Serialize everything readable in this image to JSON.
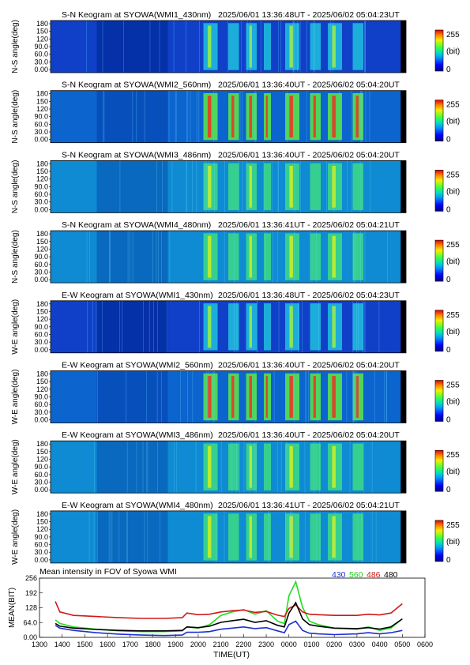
{
  "keogram_panels": [
    {
      "name": "S-N Keogram at SYOWA(WMI1_430nm)",
      "range": "2025/06/01 13:36:48UT - 2025/06/02 05:04:23UT",
      "ylabel": "N-S angle(deg)",
      "intensity": "low"
    },
    {
      "name": "S-N Keogram at SYOWA(WMI2_560nm)",
      "range": "2025/06/01 13:36:40UT - 2025/06/02 05:04:20UT",
      "ylabel": "N-S angle(deg)",
      "intensity": "high"
    },
    {
      "name": "S-N Keogram at SYOWA(WMI3_486nm)",
      "range": "2025/06/01 13:36:40UT - 2025/06/02 05:04:20UT",
      "ylabel": "N-S angle(deg)",
      "intensity": "mid"
    },
    {
      "name": "S-N Keogram at SYOWA(WMI4_480nm)",
      "range": "2025/06/01 13:36:41UT - 2025/06/02 05:04:21UT",
      "ylabel": "N-S angle(deg)",
      "intensity": "mid"
    },
    {
      "name": "E-W Keogram at SYOWA(WMI1_430nm)",
      "range": "2025/06/01 13:36:48UT - 2025/06/02 05:04:23UT",
      "ylabel": "W-E angle(deg)",
      "intensity": "low"
    },
    {
      "name": "E-W Keogram at SYOWA(WMI2_560nm)",
      "range": "2025/06/01 13:36:40UT - 2025/06/02 05:04:20UT",
      "ylabel": "W-E angle(deg)",
      "intensity": "high"
    },
    {
      "name": "E-W Keogram at SYOWA(WMI3_486nm)",
      "range": "2025/06/01 13:36:40UT - 2025/06/02 05:04:20UT",
      "ylabel": "W-E angle(deg)",
      "intensity": "mid"
    },
    {
      "name": "E-W Keogram at SYOWA(WMI4_480nm)",
      "range": "2025/06/01 13:36:41UT - 2025/06/02 05:04:21UT",
      "ylabel": "W-E angle(deg)",
      "intensity": "mid"
    }
  ],
  "keogram_yticks": [
    "180",
    "150",
    "120",
    "90.0",
    "60.0",
    "30.0",
    "0.00"
  ],
  "colorbar": {
    "max": "255",
    "unit": "(bit)",
    "min": "0"
  },
  "chart_data": {
    "type": "line",
    "title": "Mean intensity in FOV of Syowa WMI",
    "xlabel": "TIME(UT)",
    "ylabel": "MEAN(BIT)",
    "xlim": [
      13,
      30
    ],
    "ylim": [
      0,
      256
    ],
    "x_tick_labels": [
      "1300",
      "1400",
      "1500",
      "1600",
      "1700",
      "1800",
      "1900",
      "2000",
      "2100",
      "2200",
      "2300",
      "0000",
      "0100",
      "0200",
      "0300",
      "0400",
      "0500",
      "0600"
    ],
    "y_tick_labels": [
      "256",
      "192",
      "128",
      "64.0",
      "0.00"
    ],
    "y_tick_values": [
      256,
      192,
      128,
      64,
      0
    ],
    "series": [
      {
        "name": "430",
        "color": "#1f2fcf",
        "x": [
          13.7,
          13.9,
          14.5,
          15.5,
          16.5,
          17.5,
          18.5,
          19.3,
          19.5,
          20.0,
          20.5,
          21.0,
          21.5,
          22.0,
          22.5,
          23.0,
          23.5,
          23.8,
          24.0,
          24.3,
          24.6,
          24.9,
          25.3,
          26.0,
          27.0,
          27.5,
          28.0,
          28.5,
          29.0
        ],
        "y": [
          52,
          40,
          30,
          20,
          14,
          10,
          8,
          10,
          22,
          22,
          25,
          35,
          40,
          45,
          38,
          42,
          28,
          20,
          55,
          70,
          30,
          18,
          15,
          12,
          15,
          20,
          15,
          20,
          30
        ]
      },
      {
        "name": "560",
        "color": "#22dd22",
        "x": [
          13.7,
          13.9,
          14.5,
          15.5,
          16.5,
          17.5,
          18.5,
          19.3,
          19.5,
          20.0,
          20.5,
          21.0,
          21.5,
          22.0,
          22.5,
          23.0,
          23.5,
          23.8,
          24.0,
          24.3,
          24.6,
          24.9,
          25.3,
          26.0,
          27.0,
          27.5,
          28.0,
          28.5,
          29.0
        ],
        "y": [
          75,
          60,
          45,
          35,
          28,
          25,
          25,
          28,
          45,
          40,
          55,
          95,
          110,
          120,
          100,
          115,
          70,
          60,
          180,
          240,
          130,
          70,
          55,
          40,
          35,
          45,
          30,
          40,
          80
        ]
      },
      {
        "name": "486",
        "color": "#d01818",
        "x": [
          13.7,
          13.9,
          14.5,
          15.5,
          16.5,
          17.5,
          18.5,
          19.3,
          19.5,
          20.0,
          20.5,
          21.0,
          21.5,
          22.0,
          22.5,
          23.0,
          23.5,
          23.8,
          24.0,
          24.3,
          24.6,
          24.9,
          25.3,
          26.0,
          27.0,
          27.5,
          28.0,
          28.5,
          29.0
        ],
        "y": [
          155,
          110,
          95,
          90,
          85,
          82,
          82,
          85,
          105,
          98,
          100,
          110,
          115,
          118,
          108,
          112,
          96,
          90,
          125,
          140,
          110,
          100,
          98,
          95,
          95,
          100,
          97,
          105,
          145
        ]
      },
      {
        "name": "480",
        "color": "#000000",
        "x": [
          13.7,
          13.9,
          14.5,
          15.5,
          16.5,
          17.5,
          18.5,
          19.3,
          19.5,
          20.0,
          20.5,
          21.0,
          21.5,
          22.0,
          22.5,
          23.0,
          23.5,
          23.8,
          24.0,
          24.3,
          24.6,
          24.9,
          25.3,
          26.0,
          27.0,
          27.5,
          28.0,
          28.5,
          29.0
        ],
        "y": [
          60,
          48,
          40,
          34,
          30,
          28,
          28,
          30,
          45,
          42,
          48,
          65,
          72,
          78,
          65,
          72,
          52,
          45,
          105,
          150,
          80,
          55,
          48,
          40,
          38,
          42,
          36,
          45,
          80
        ]
      }
    ]
  }
}
